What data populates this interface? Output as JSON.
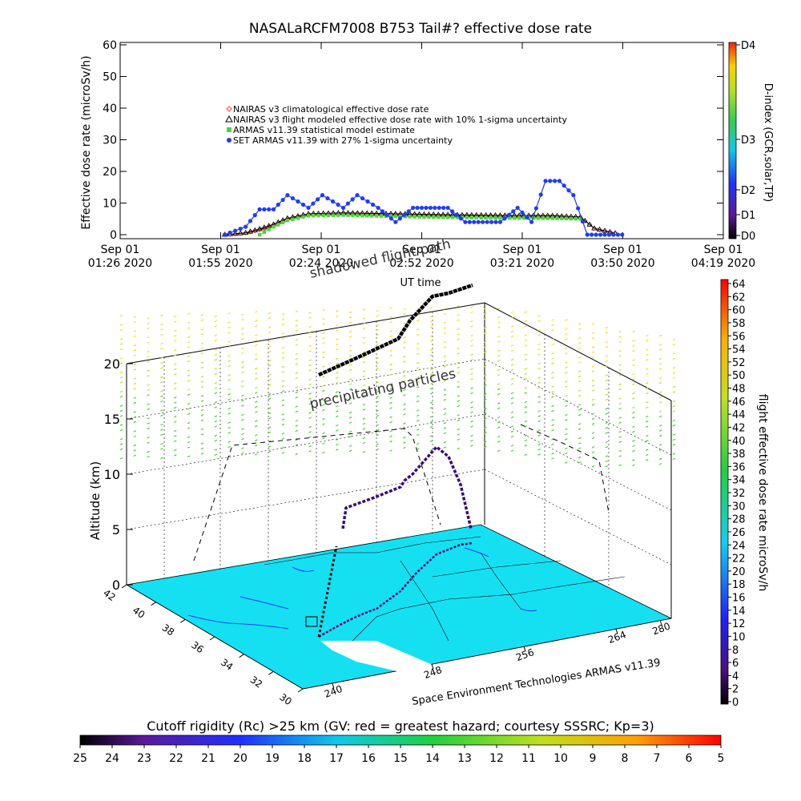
{
  "chart_data": [
    {
      "type": "scatter",
      "title": "NASALaRCFM7008  B753 Tail#? effective dose rate",
      "ylabel": "Effective dose rate (microSv/h)",
      "xlabel": "UT time",
      "ylim": [
        0,
        60
      ],
      "yticks": [
        "0",
        "10",
        "20",
        "30",
        "40",
        "50",
        "60"
      ],
      "xticks": [
        {
          "line1": "Sep 01",
          "line2": "01:26 2020"
        },
        {
          "line1": "Sep 01",
          "line2": "01:55 2020"
        },
        {
          "line1": "Sep 01",
          "line2": "02:24 2020"
        },
        {
          "line1": "Sep 01",
          "line2": "02:52 2020"
        },
        {
          "line1": "Sep 01",
          "line2": "03:21 2020"
        },
        {
          "line1": "Sep 01",
          "line2": "03:50 2020"
        },
        {
          "line1": "Sep 01",
          "line2": "04:19 2020"
        }
      ],
      "xlim": [
        "01:26",
        "04:19"
      ],
      "legend_position": "upper-left",
      "right_axis": {
        "label": "D-index (GCR,solar,TP)",
        "ticks": [
          "D0",
          "D1",
          "D2",
          "D3",
          "D4"
        ]
      },
      "series": [
        {
          "name": "NAIRAS v3 climatological effective dose rate",
          "marker": "diamond",
          "color": "#ff3c3c",
          "x": [
            "01:56",
            "02:02",
            "02:06",
            "02:10",
            "02:14",
            "02:20",
            "02:30",
            "02:45",
            "03:00",
            "03:15",
            "03:30",
            "03:38",
            "03:42",
            "03:48"
          ],
          "values": [
            0,
            0.5,
            1.5,
            3,
            5,
            6.5,
            6.8,
            6.5,
            6.2,
            6,
            6,
            5.5,
            2,
            0.5
          ]
        },
        {
          "name": "NAIRAS v3 flight modeled effective dose rate with 10% 1-sigma uncertainty",
          "marker": "triangle",
          "color": "#000000",
          "x": [
            "01:56",
            "02:02",
            "02:06",
            "02:10",
            "02:14",
            "02:20",
            "02:30",
            "02:45",
            "03:00",
            "03:15",
            "03:30",
            "03:38",
            "03:42",
            "03:48"
          ],
          "values": [
            0,
            0.6,
            1.8,
            3.3,
            5.2,
            6.6,
            6.9,
            6.6,
            6.3,
            6.1,
            6,
            5.6,
            2,
            0.5
          ]
        },
        {
          "name": "ARMAS v11.39 statistical model estimate",
          "marker": "square",
          "color": "#50d23c",
          "x": [
            "02:06",
            "02:10",
            "02:14",
            "02:20",
            "02:30",
            "02:45",
            "03:00",
            "03:15",
            "03:30",
            "03:38"
          ],
          "values": [
            0,
            2.5,
            4.5,
            6,
            6.2,
            5.8,
            5.5,
            5.3,
            5.2,
            5
          ]
        },
        {
          "name": "SET ARMAS v11.39 with 27% 1-sigma uncertainty",
          "marker": "circle",
          "color": "#1e3cff",
          "x": [
            "01:56",
            "02:02",
            "02:06",
            "02:10",
            "02:14",
            "02:20",
            "02:24",
            "02:30",
            "02:34",
            "02:40",
            "02:45",
            "02:50",
            "02:55",
            "03:00",
            "03:05",
            "03:10",
            "03:15",
            "03:20",
            "03:24",
            "03:28",
            "03:32",
            "03:36",
            "03:40",
            "03:45",
            "03:50"
          ],
          "values": [
            0,
            2.5,
            8,
            8,
            12.5,
            8.5,
            12.5,
            8.5,
            12.5,
            8.5,
            4,
            8.5,
            8.5,
            8.5,
            4,
            4,
            4,
            8.5,
            4,
            17,
            17,
            12.5,
            0,
            0,
            0
          ]
        }
      ]
    },
    {
      "type": "scatter",
      "subtype": "3d-trajectory",
      "zlabel": "Altitude (km)",
      "zlim": [
        0,
        20
      ],
      "zticks": [
        "0",
        "5",
        "10",
        "15",
        "20"
      ],
      "lat_ticks": [
        "30",
        "32",
        "34",
        "36",
        "38",
        "40",
        "42"
      ],
      "lon_ticks": [
        "240",
        "248",
        "256",
        "264",
        "280"
      ],
      "annotations": [
        "precipitating particles",
        "shadowed flight path"
      ],
      "credit": "Space Environment Technologies ARMAS v11.39",
      "right_colorbar": {
        "label": "flight effective dose rate microSv/h",
        "ticks": [
          "0",
          "2",
          "4",
          "6",
          "8",
          "10",
          "12",
          "14",
          "16",
          "18",
          "20",
          "22",
          "24",
          "26",
          "28",
          "30",
          "32",
          "34",
          "36",
          "38",
          "40",
          "42",
          "44",
          "46",
          "48",
          "50",
          "52",
          "54",
          "56",
          "58",
          "60",
          "62",
          "64"
        ]
      },
      "bottom_colorbar": {
        "label": "Cutoff rigidity (Rc) >25 km (GV: red = greatest hazard; courtesy SSSRC; Kp=3)",
        "ticks": [
          "25",
          "24",
          "23",
          "22",
          "21",
          "20",
          "19",
          "18",
          "17",
          "16",
          "15",
          "14",
          "13",
          "12",
          "11",
          "10",
          "9",
          "8",
          "7",
          "6",
          "5"
        ]
      }
    }
  ]
}
